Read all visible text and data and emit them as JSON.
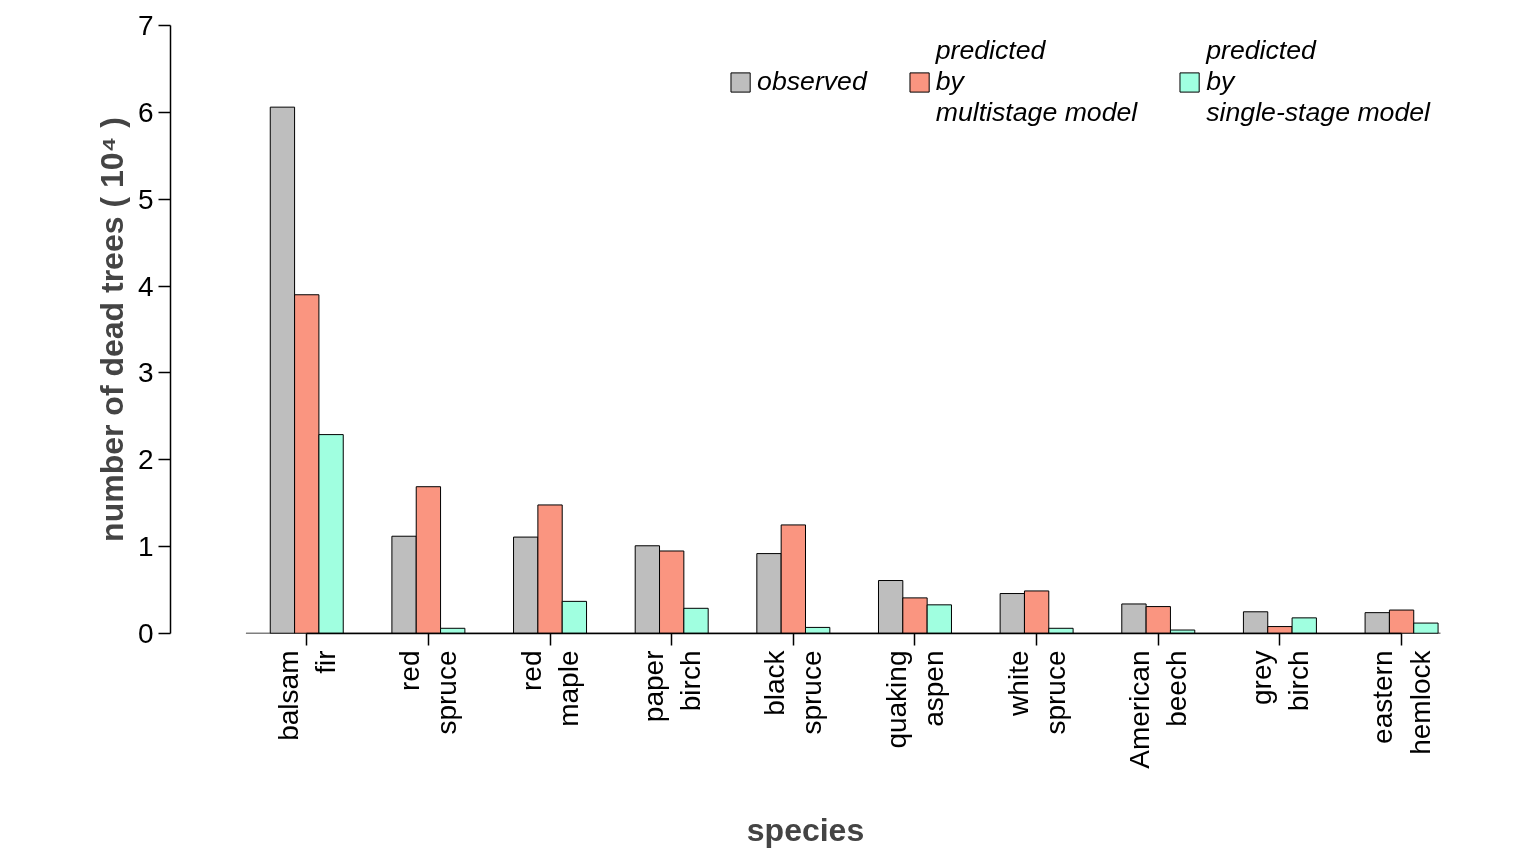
{
  "chart_data": {
    "type": "bar",
    "xlabel": "species",
    "ylabel": "number of dead trees ( 10⁴ )",
    "categories": [
      "balsam fir",
      "red spruce",
      "red maple",
      "paper birch",
      "black spruce",
      "quaking aspen",
      "white spruce",
      "American beech",
      "grey birch",
      "eastern hemlock"
    ],
    "series": [
      {
        "name": "observed",
        "color": "#bebebe",
        "values": [
          6.06,
          1.12,
          1.11,
          1.01,
          0.92,
          0.61,
          0.46,
          0.34,
          0.25,
          0.24
        ]
      },
      {
        "name": "predicted by multistage model",
        "color": "#fa9580",
        "values": [
          3.9,
          1.69,
          1.48,
          0.95,
          1.25,
          0.41,
          0.49,
          0.31,
          0.08,
          0.27
        ]
      },
      {
        "name": "predicted by single-stage model",
        "color": "#a0ffe0",
        "values": [
          2.29,
          0.06,
          0.37,
          0.29,
          0.07,
          0.33,
          0.06,
          0.04,
          0.18,
          0.12
        ]
      }
    ],
    "ylim": [
      0,
      7
    ],
    "yticks": [
      0,
      1,
      2,
      3,
      4,
      5,
      6,
      7
    ],
    "grid": false,
    "legend": "top right"
  }
}
